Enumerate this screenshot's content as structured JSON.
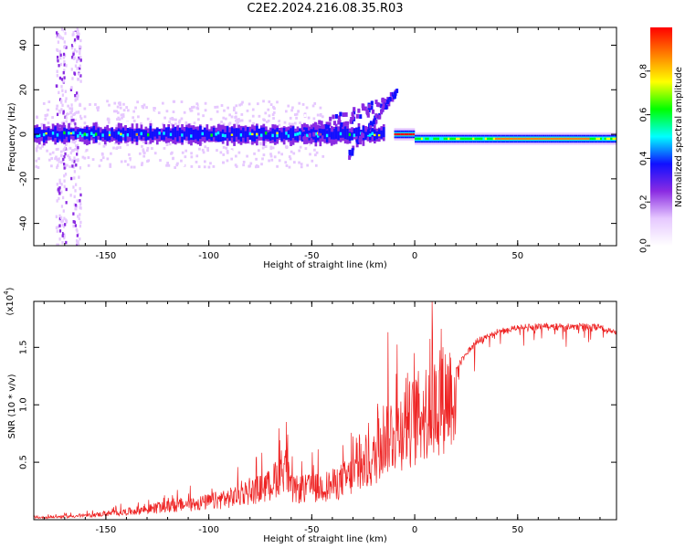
{
  "page": {
    "title": "C2E2.2024.216.08.35.R03"
  },
  "colors": {
    "colormap": [
      "#ffffff",
      "#e6c8ff",
      "#8a2be2",
      "#1010ff",
      "#00ffff",
      "#00ff00",
      "#ffff00",
      "#ff8000",
      "#ff0000"
    ],
    "snr_line": "#ee2222",
    "axes": "#000000"
  },
  "chart_data": [
    {
      "type": "heatmap",
      "title": "C2E2.2024.216.08.35.R03",
      "xlabel": "Height of straight line (km)",
      "ylabel": "Frequency (Hz)",
      "xlim": [
        -185,
        98
      ],
      "ylim": [
        -50,
        48
      ],
      "xticks": [
        -150,
        -100,
        -50,
        0,
        50
      ],
      "yticks": [
        -40,
        -20,
        0,
        20,
        40
      ],
      "ytick_labels": [
        "-40",
        "-20",
        "0",
        "20",
        "40"
      ],
      "description_of_features": [
        {
          "x": [
            -185,
            -50
          ],
          "y_center": 0,
          "half_width": 3,
          "amplitude": 0.35
        },
        {
          "x": [
            -10,
            98
          ],
          "y_center": -2,
          "half_width": 1.5,
          "amplitude": 0.9
        }
      ],
      "colorbar": {
        "label": "Normalized spectral amplitude",
        "range": [
          0.0,
          1.0
        ],
        "ticks": [
          0.0,
          0.2,
          0.4,
          0.6,
          0.8
        ],
        "tick_labels": [
          "0.0",
          "0.2",
          "0.4",
          "0.6",
          "0.8"
        ]
      }
    },
    {
      "type": "line",
      "xlabel": "Height of straight line (km)",
      "ylabel": "SNR (10 * v/v)",
      "yscale_label": "(x10",
      "yscale_exp": "4",
      "xlim": [
        -185,
        98
      ],
      "ylim": [
        0,
        1.9
      ],
      "xticks": [
        -150,
        -100,
        -50,
        0,
        50
      ],
      "yticks": [
        0.5,
        1.0,
        1.5
      ],
      "ytick_labels": [
        "0.5",
        "1.0",
        "1.5"
      ],
      "series": [
        {
          "x": [
            -185,
            -160,
            -140,
            -120,
            -100,
            -90,
            -80,
            -70,
            -63,
            -60,
            -50,
            -40,
            -30,
            -20,
            -15,
            -10,
            -5,
            0,
            5,
            10,
            20,
            30,
            40,
            50,
            60,
            70,
            80,
            90,
            98
          ],
          "y": [
            0.02,
            0.04,
            0.08,
            0.13,
            0.18,
            0.22,
            0.28,
            0.35,
            0.55,
            0.3,
            0.32,
            0.35,
            0.45,
            0.6,
            0.85,
            0.9,
            0.95,
            1.0,
            1.1,
            1.15,
            1.35,
            1.58,
            1.66,
            1.7,
            1.71,
            1.71,
            1.71,
            1.7,
            1.66
          ]
        }
      ]
    }
  ]
}
